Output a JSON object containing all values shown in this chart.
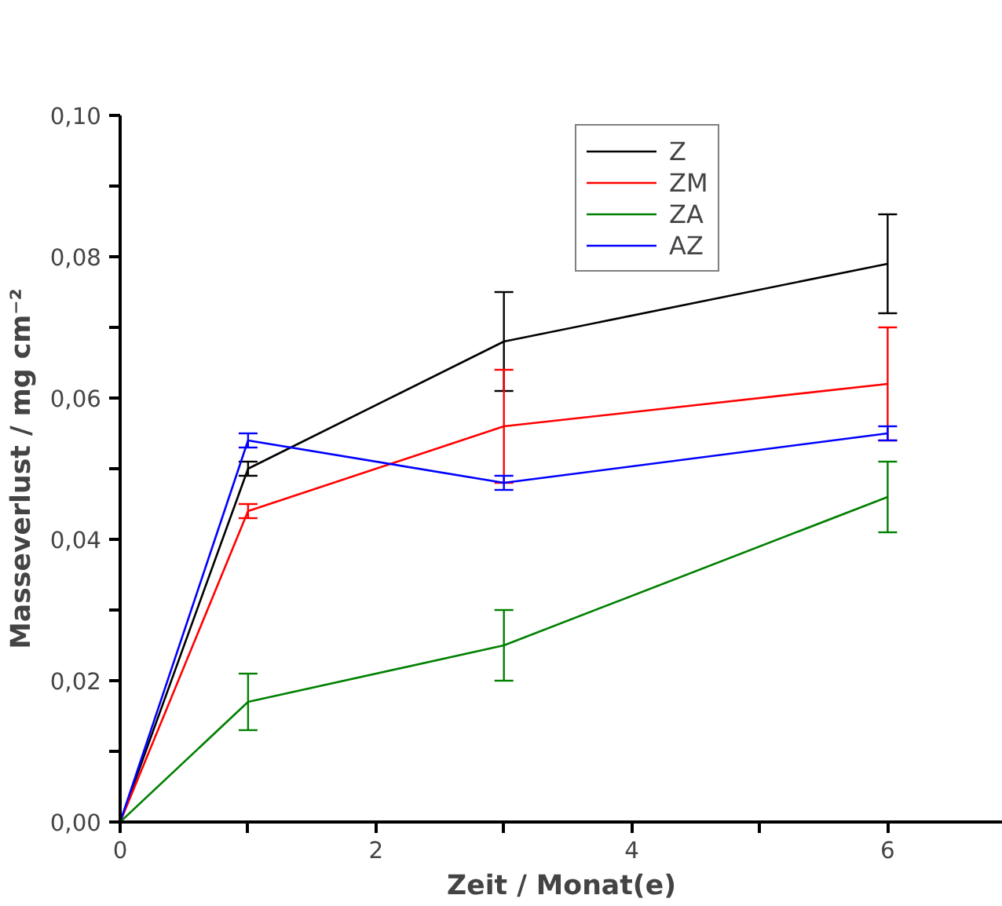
{
  "chart_data": {
    "type": "line",
    "xlabel": "Zeit / Monat(e)",
    "ylabel": "Masseverlust / mg cm⁻²",
    "x": [
      0,
      1,
      3,
      6
    ],
    "series": [
      {
        "name": "Z",
        "color": "#000000",
        "values": [
          0,
          0.05,
          0.068,
          0.079
        ],
        "errors": [
          null,
          0.001,
          0.007,
          0.007
        ]
      },
      {
        "name": "ZM",
        "color": "#ff0000",
        "values": [
          0,
          0.044,
          0.056,
          0.062
        ],
        "errors": [
          null,
          0.001,
          0.008,
          0.008
        ]
      },
      {
        "name": "ZA",
        "color": "#008000",
        "values": [
          0,
          0.017,
          0.025,
          0.046
        ],
        "errors": [
          null,
          0.004,
          0.005,
          0.005
        ]
      },
      {
        "name": "AZ",
        "color": "#0000ff",
        "values": [
          0,
          0.054,
          0.048,
          0.055
        ],
        "errors": [
          null,
          0.001,
          0.001,
          0.001
        ]
      }
    ],
    "xlim": [
      0,
      6.9
    ],
    "xticks": [
      0,
      {
        "value": 1,
        "label": null
      },
      2,
      {
        "value": 3,
        "label": null
      },
      4,
      {
        "value": 5,
        "label": null
      },
      6
    ],
    "ylim": [
      0,
      0.1
    ],
    "yticks": [
      {
        "value": 0,
        "label": "0,00"
      },
      {
        "value": 0.01,
        "label": null
      },
      {
        "value": 0.02,
        "label": "0,02"
      },
      {
        "value": 0.03,
        "label": null
      },
      {
        "value": 0.04,
        "label": "0,04"
      },
      {
        "value": 0.05,
        "label": null
      },
      {
        "value": 0.06,
        "label": "0,06"
      },
      {
        "value": 0.07,
        "label": null
      },
      {
        "value": 0.08,
        "label": "0,08"
      },
      {
        "value": 0.09,
        "label": null
      },
      {
        "value": 0.1,
        "label": "0,10"
      }
    ],
    "grid": false,
    "legend": "top",
    "marker": "none",
    "line_style": "solid"
  }
}
